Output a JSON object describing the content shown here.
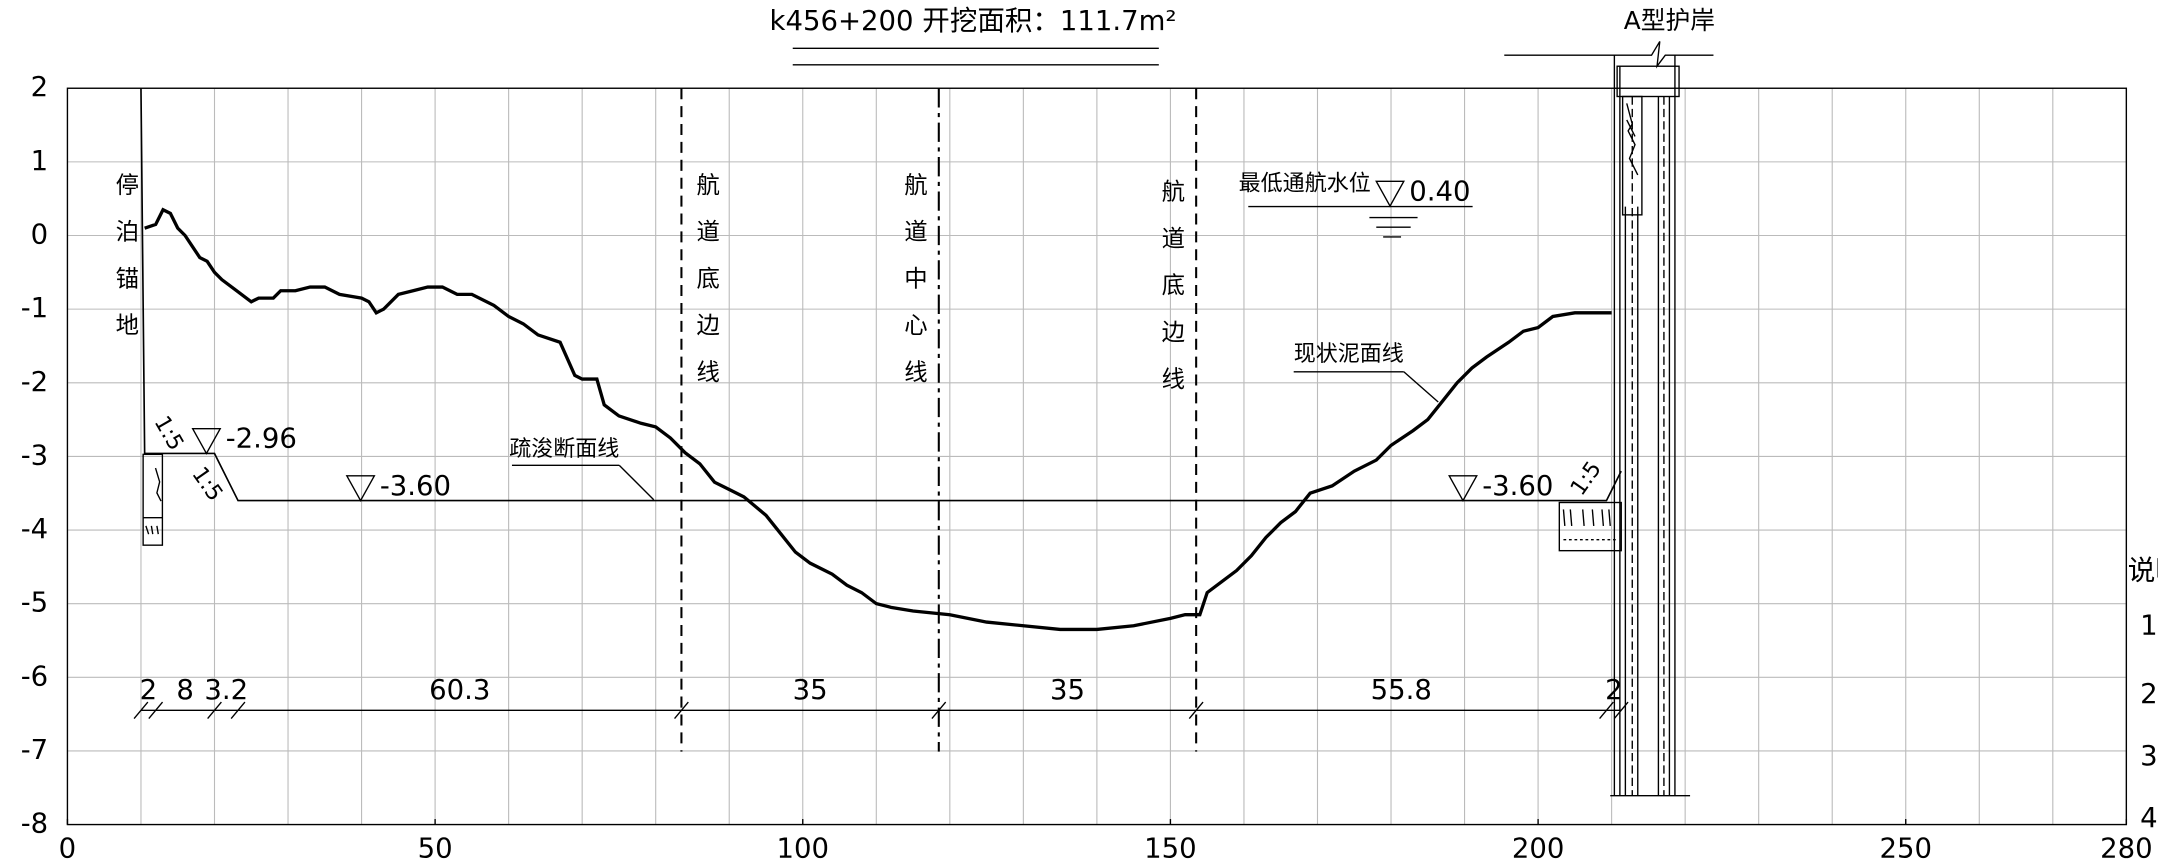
{
  "chart_data": {
    "type": "line",
    "title": "k456+200 开挖面积：111.7m²",
    "xlim": [
      0,
      280
    ],
    "ylim": [
      -8,
      2
    ],
    "xticks": [
      0,
      50,
      100,
      150,
      200,
      250,
      280
    ],
    "yticks": [
      -8,
      -7,
      -6,
      -5,
      -4,
      -3,
      -2,
      -1,
      0,
      1,
      2
    ],
    "xgrid": [
      0,
      10,
      20,
      30,
      40,
      50,
      60,
      70,
      80,
      90,
      100,
      110,
      120,
      130,
      140,
      150,
      160,
      170,
      180,
      190,
      200,
      210,
      220,
      230,
      240,
      250,
      260,
      270,
      280
    ],
    "grid": true,
    "series": [
      {
        "name": "现状泥面线",
        "color": "#000000",
        "x": [
          10.5,
          12,
          13,
          14,
          15,
          16,
          17,
          18,
          19,
          20,
          21,
          23,
          25,
          26,
          28,
          29,
          31,
          33,
          35,
          37,
          40,
          41,
          42,
          43,
          45,
          47,
          49,
          51,
          53,
          55,
          58,
          60,
          62,
          64,
          67,
          69,
          70,
          72,
          73,
          75,
          78,
          80,
          82,
          84,
          86,
          88,
          90,
          92,
          95,
          97,
          99,
          101,
          104,
          106,
          108,
          110,
          112,
          115,
          120,
          125,
          130,
          135,
          140,
          145,
          150,
          152,
          154,
          155,
          157,
          159,
          161,
          163,
          165,
          167,
          169,
          172,
          175,
          178,
          180,
          183,
          185,
          187,
          189,
          191,
          193,
          196,
          198,
          200,
          202,
          205,
          207,
          210
        ],
        "values": [
          0.1,
          0.15,
          0.35,
          0.3,
          0.1,
          0,
          -0.15,
          -0.3,
          -0.35,
          -0.5,
          -0.6,
          -0.75,
          -0.9,
          -0.85,
          -0.85,
          -0.75,
          -0.75,
          -0.7,
          -0.7,
          -0.8,
          -0.85,
          -0.9,
          -1.05,
          -1.0,
          -0.8,
          -0.75,
          -0.7,
          -0.7,
          -0.8,
          -0.8,
          -0.95,
          -1.1,
          -1.2,
          -1.35,
          -1.45,
          -1.9,
          -1.95,
          -1.95,
          -2.3,
          -2.45,
          -2.55,
          -2.6,
          -2.75,
          -2.95,
          -3.1,
          -3.35,
          -3.45,
          -3.55,
          -3.8,
          -4.05,
          -4.3,
          -4.45,
          -4.6,
          -4.75,
          -4.85,
          -5.0,
          -5.05,
          -5.1,
          -5.15,
          -5.25,
          -5.3,
          -5.35,
          -5.35,
          -5.3,
          -5.2,
          -5.15,
          -5.15,
          -4.85,
          -4.7,
          -4.55,
          -4.35,
          -4.1,
          -3.9,
          -3.75,
          -3.5,
          -3.4,
          -3.2,
          -3.05,
          -2.85,
          -2.65,
          -2.5,
          -2.25,
          -2.0,
          -1.8,
          -1.65,
          -1.45,
          -1.3,
          -1.25,
          -1.1,
          -1.05,
          -1.05,
          -1.05
        ]
      },
      {
        "name": "疏浚断面线",
        "color": "#000000",
        "x": [
          10,
          10.5,
          20,
          23.2,
          209.3,
          211.3
        ],
        "values": [
          2,
          -2.96,
          -2.96,
          -3.6,
          -3.6,
          -3.2
        ]
      }
    ],
    "dimensions": [
      2,
      8,
      3.2,
      60.3,
      35,
      35,
      55.8,
      2
    ],
    "levels": [
      {
        "value": -2.96,
        "label": "-2.96"
      },
      {
        "value": -3.6,
        "label": "-3.60"
      },
      {
        "value": -3.6,
        "label": "-3.60"
      },
      {
        "value": 0.4,
        "label": "0.40"
      }
    ],
    "slope_labels": [
      "1:5",
      "1:5",
      "1:5"
    ],
    "labels": {
      "anchorage": "停泊锚地",
      "channel_edge_left": "航道底边线",
      "channel_center": "航道中心线",
      "channel_edge_right": "航道底边线",
      "revetment": "A型护岸",
      "low_water": "最低通航水位"
    },
    "notes": [
      "说明",
      "1",
      "2",
      "3",
      "4"
    ]
  }
}
